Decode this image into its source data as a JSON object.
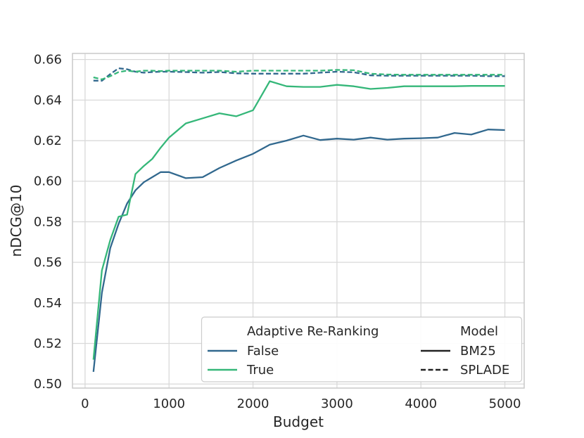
{
  "figure": {
    "background": "#ffffff",
    "text_color": "#262626",
    "grid_color": "#d9d9d9",
    "frame_color": "#c9c9c9",
    "legend_border_color": "#cccccc"
  },
  "chart_data": {
    "type": "line",
    "title": "",
    "xlabel": "Budget",
    "ylabel": "nDCG@10",
    "xlim": [
      -150,
      5230
    ],
    "ylim": [
      0.498,
      0.663
    ],
    "grid": true,
    "legend_position": "lower right",
    "xticks": [
      0,
      1000,
      2000,
      3000,
      4000,
      5000
    ],
    "xtick_labels": [
      "0",
      "1000",
      "2000",
      "3000",
      "4000",
      "5000"
    ],
    "yticks": [
      0.5,
      0.52,
      0.54,
      0.56,
      0.58,
      0.6,
      0.62,
      0.64,
      0.66
    ],
    "ytick_labels": [
      "0.50",
      "0.52",
      "0.54",
      "0.56",
      "0.58",
      "0.60",
      "0.62",
      "0.64",
      "0.66"
    ],
    "x": [
      100,
      200,
      300,
      400,
      500,
      600,
      700,
      800,
      900,
      1000,
      1200,
      1400,
      1600,
      1800,
      2000,
      2200,
      2400,
      2600,
      2800,
      3000,
      3200,
      3400,
      3600,
      3800,
      4000,
      4200,
      4400,
      4600,
      4800,
      5000
    ],
    "series": [
      {
        "id": "bm25-false",
        "model": "BM25",
        "adaptive_re_ranking": "False",
        "style": "solid",
        "color": "#31688e",
        "values": [
          0.506,
          0.545,
          0.567,
          0.579,
          0.589,
          0.5955,
          0.5995,
          0.602,
          0.6045,
          0.6045,
          0.6015,
          0.602,
          0.6065,
          0.6102,
          0.6135,
          0.618,
          0.62,
          0.6225,
          0.6203,
          0.621,
          0.6205,
          0.6215,
          0.6205,
          0.621,
          0.6212,
          0.6215,
          0.6238,
          0.623,
          0.6255,
          0.6252
        ]
      },
      {
        "id": "bm25-true",
        "model": "BM25",
        "adaptive_re_ranking": "True",
        "style": "solid",
        "color": "#35b779",
        "values": [
          0.512,
          0.556,
          0.571,
          0.5825,
          0.5835,
          0.6035,
          0.6075,
          0.611,
          0.6165,
          0.6215,
          0.6285,
          0.631,
          0.6335,
          0.632,
          0.635,
          0.6493,
          0.6468,
          0.6465,
          0.6465,
          0.6475,
          0.6468,
          0.6455,
          0.646,
          0.6468,
          0.6468,
          0.6468,
          0.6468,
          0.647,
          0.647,
          0.647
        ]
      },
      {
        "id": "splade-false",
        "model": "SPLADE",
        "adaptive_re_ranking": "False",
        "style": "dashed",
        "color": "#31688e",
        "values": [
          0.6496,
          0.6495,
          0.6528,
          0.6557,
          0.6552,
          0.654,
          0.6535,
          0.6538,
          0.654,
          0.654,
          0.6538,
          0.6535,
          0.6538,
          0.6532,
          0.653,
          0.653,
          0.653,
          0.653,
          0.6535,
          0.654,
          0.6537,
          0.6522,
          0.652,
          0.652,
          0.652,
          0.652,
          0.652,
          0.652,
          0.6518,
          0.6518
        ]
      },
      {
        "id": "splade-true",
        "model": "SPLADE",
        "adaptive_re_ranking": "True",
        "style": "dashed",
        "color": "#35b779",
        "values": [
          0.6512,
          0.6502,
          0.6518,
          0.6538,
          0.6545,
          0.654,
          0.6545,
          0.6545,
          0.6543,
          0.6545,
          0.6545,
          0.6545,
          0.6545,
          0.654,
          0.6545,
          0.6545,
          0.6545,
          0.6545,
          0.6545,
          0.6549,
          0.6547,
          0.653,
          0.6526,
          0.6525,
          0.6525,
          0.6525,
          0.6525,
          0.6525,
          0.6525,
          0.6525
        ]
      }
    ],
    "legend": {
      "columns": [
        {
          "title": "Adaptive Re-Ranking",
          "entries": [
            {
              "label": "False",
              "color": "#31688e",
              "style": "solid"
            },
            {
              "label": "True",
              "color": "#35b779",
              "style": "solid"
            }
          ]
        },
        {
          "title": "Model",
          "entries": [
            {
              "label": "BM25",
              "color": "#222222",
              "style": "solid"
            },
            {
              "label": "SPLADE",
              "color": "#222222",
              "style": "dashed"
            }
          ]
        }
      ]
    }
  }
}
